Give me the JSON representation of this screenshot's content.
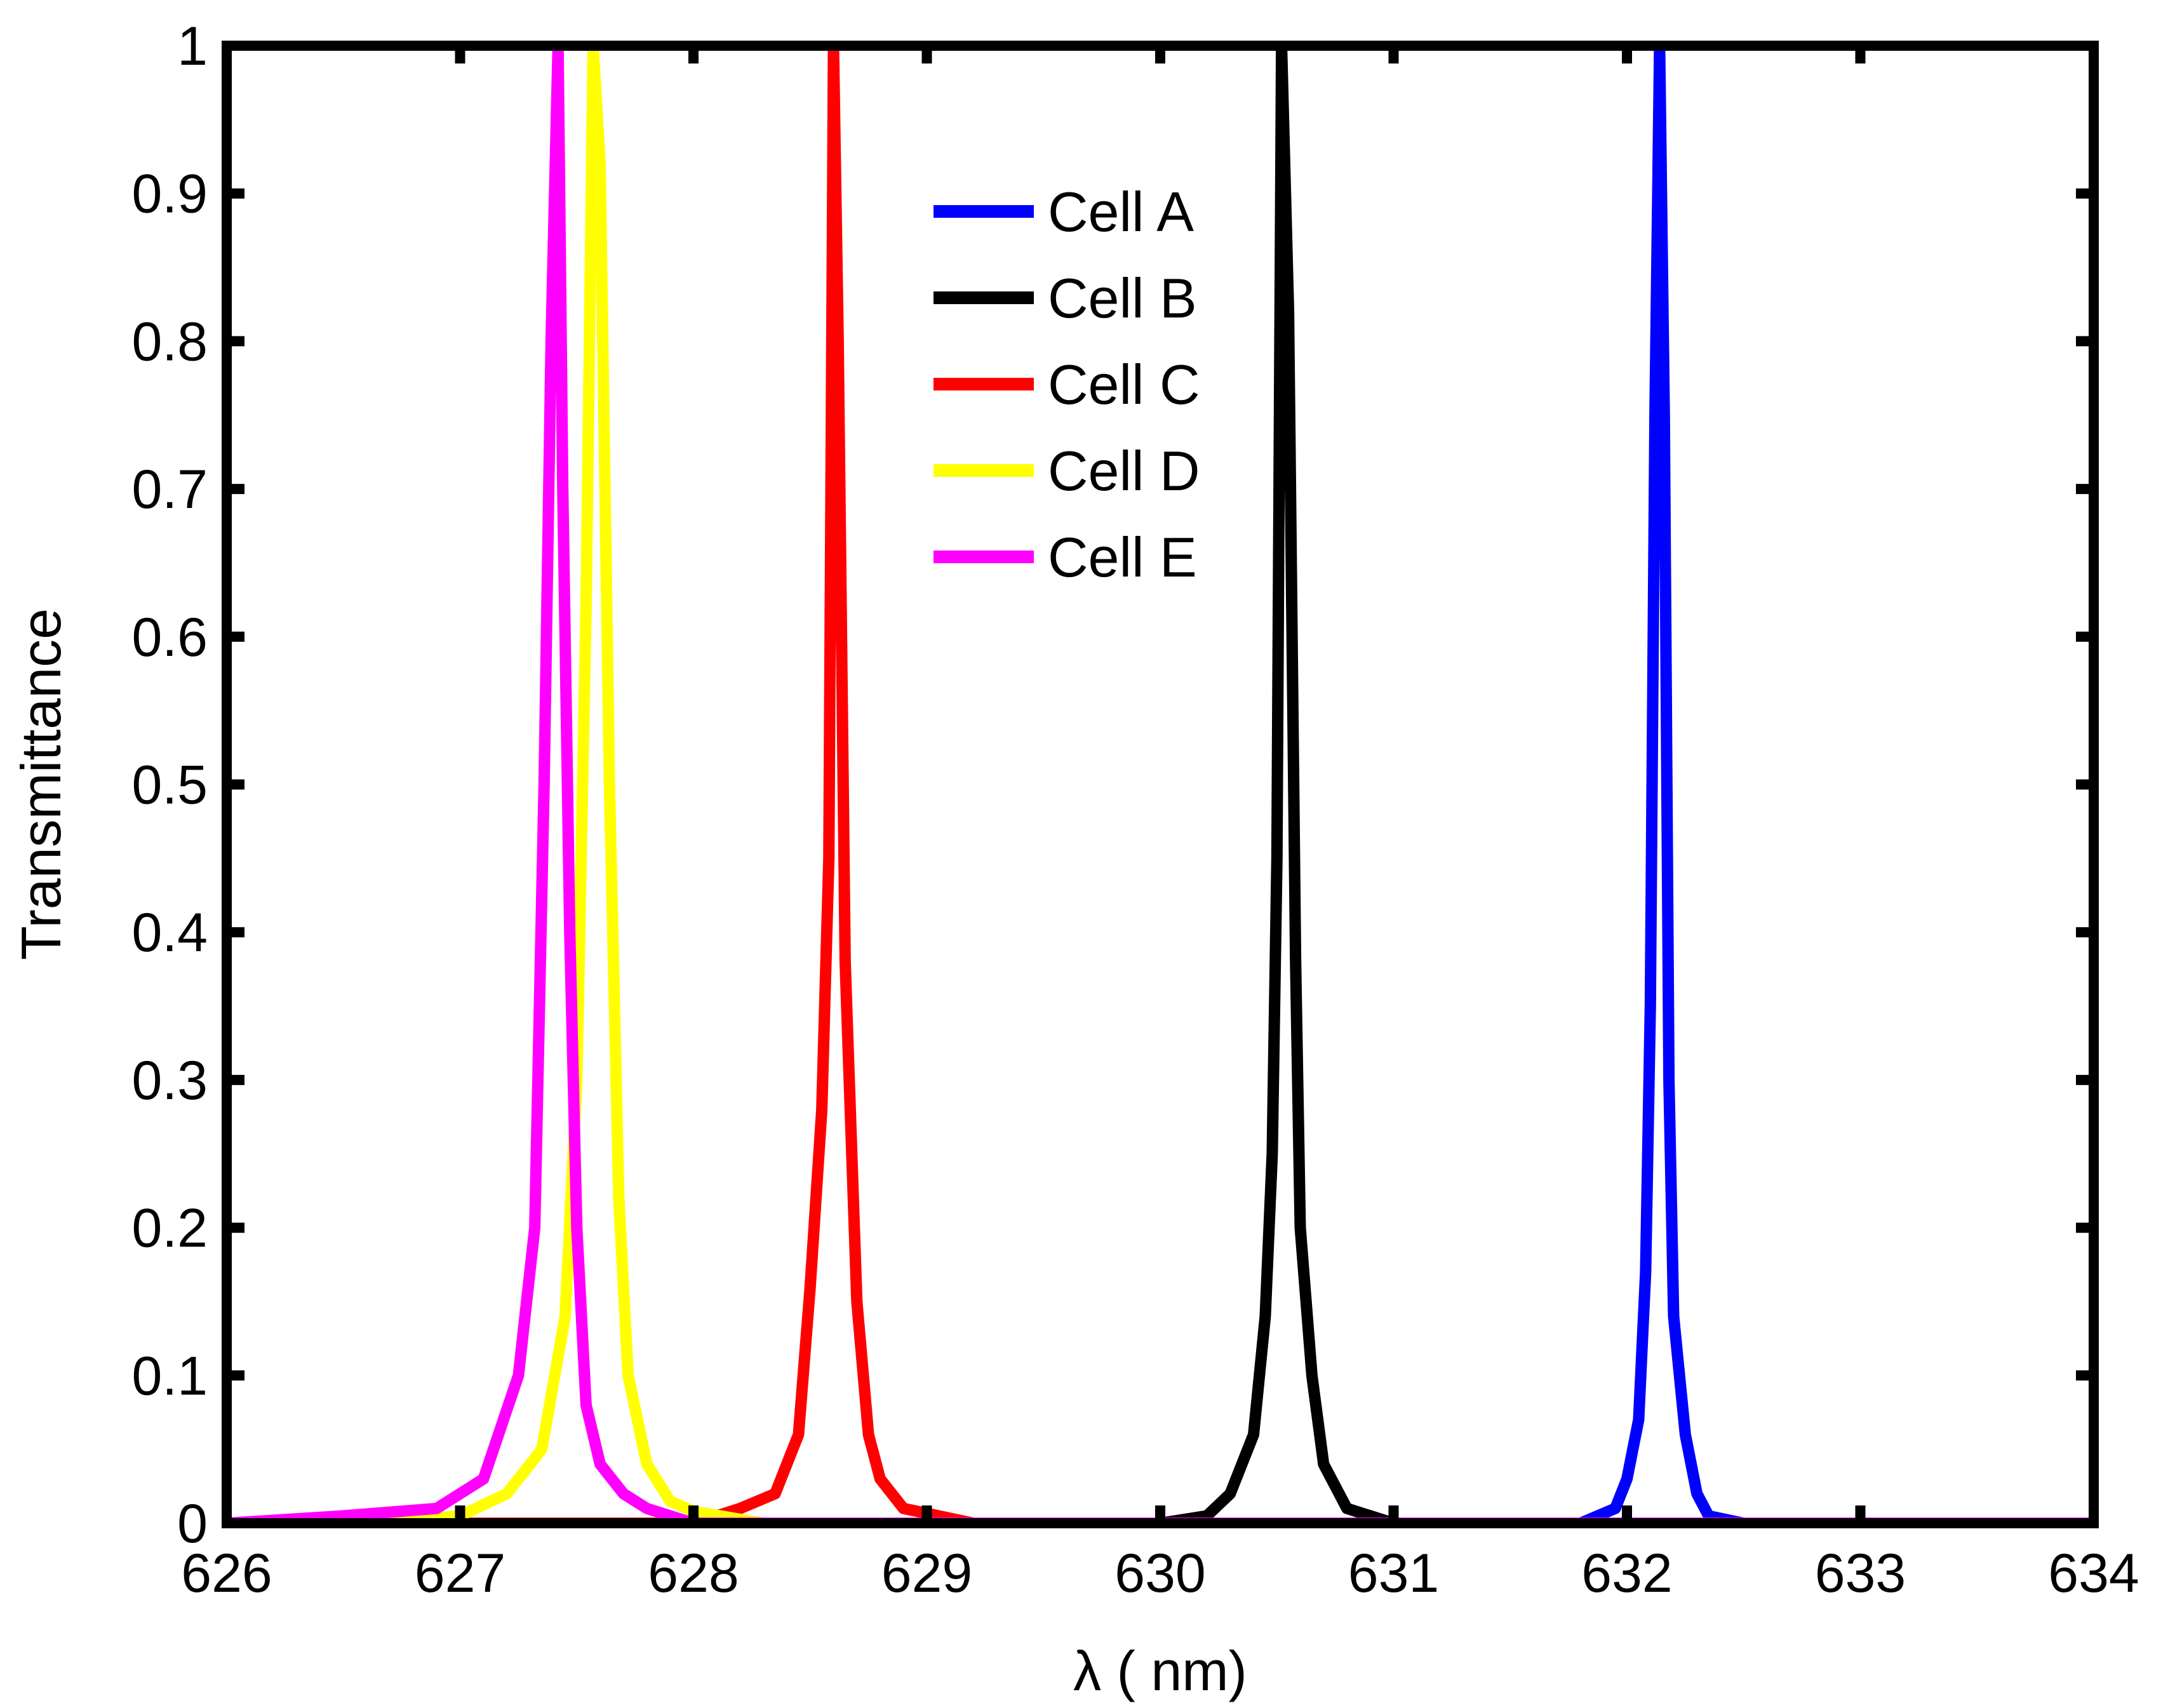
{
  "chart_data": {
    "type": "line",
    "title": "",
    "xlabel": "λ ( nm)",
    "ylabel": "Transmittance",
    "xlim": [
      626,
      634
    ],
    "ylim": [
      0,
      1
    ],
    "xticks": [
      626,
      627,
      628,
      629,
      630,
      631,
      632,
      633,
      634
    ],
    "yticks": [
      0,
      0.1,
      0.2,
      0.3,
      0.4,
      0.5,
      0.6,
      0.7,
      0.8,
      0.9,
      1
    ],
    "xtick_labels": [
      "626",
      "627",
      "628",
      "629",
      "630",
      "631",
      "632",
      "633",
      "634"
    ],
    "ytick_labels": [
      "0",
      "0.1",
      "0.2",
      "0.3",
      "0.4",
      "0.5",
      "0.6",
      "0.7",
      "0.8",
      "0.9",
      "1"
    ],
    "grid": false,
    "legend_position": "top-center",
    "series": [
      {
        "name": "Cell A",
        "color": "#0000ff",
        "x": [
          631.8,
          631.95,
          632.0,
          632.05,
          632.08,
          632.1,
          632.12,
          632.14,
          632.16,
          632.18,
          632.2,
          632.25,
          632.3,
          632.35,
          632.5
        ],
        "y": [
          0.0,
          0.01,
          0.03,
          0.07,
          0.17,
          0.35,
          0.75,
          1.0,
          0.75,
          0.3,
          0.14,
          0.06,
          0.02,
          0.005,
          0.0
        ]
      },
      {
        "name": "Cell B",
        "color": "#000000",
        "x": [
          630.0,
          630.2,
          630.3,
          630.4,
          630.45,
          630.48,
          630.5,
          630.52,
          630.55,
          630.58,
          630.6,
          630.65,
          630.7,
          630.8,
          631.0
        ],
        "y": [
          0.0,
          0.005,
          0.02,
          0.06,
          0.14,
          0.25,
          0.45,
          1.0,
          0.82,
          0.38,
          0.2,
          0.1,
          0.04,
          0.01,
          0.0
        ]
      },
      {
        "name": "Cell C",
        "color": "#ff0000",
        "x": [
          627.0,
          628.0,
          628.2,
          628.35,
          628.45,
          628.5,
          628.55,
          628.58,
          628.6,
          628.62,
          628.65,
          628.7,
          628.75,
          628.8,
          628.9,
          629.2
        ],
        "y": [
          0.0,
          0.0,
          0.01,
          0.02,
          0.06,
          0.16,
          0.28,
          0.45,
          1.0,
          0.8,
          0.38,
          0.15,
          0.06,
          0.03,
          0.01,
          0.0
        ]
      },
      {
        "name": "Cell D",
        "color": "#ffff00",
        "x": [
          626.6,
          627.0,
          627.2,
          627.35,
          627.45,
          627.5,
          627.54,
          627.57,
          627.6,
          627.64,
          627.68,
          627.72,
          627.8,
          627.9,
          628.0,
          628.3
        ],
        "y": [
          0.0,
          0.005,
          0.02,
          0.05,
          0.14,
          0.3,
          0.62,
          1.0,
          0.92,
          0.5,
          0.22,
          0.1,
          0.04,
          0.015,
          0.008,
          0.0
        ]
      },
      {
        "name": "Cell E",
        "color": "#ff00ff",
        "x": [
          626.0,
          626.5,
          626.9,
          627.1,
          627.25,
          627.32,
          627.36,
          627.39,
          627.42,
          627.44,
          627.47,
          627.5,
          627.54,
          627.6,
          627.7,
          627.8,
          628.0,
          634.0
        ],
        "y": [
          0.0,
          0.005,
          0.01,
          0.03,
          0.1,
          0.2,
          0.5,
          0.8,
          1.0,
          0.7,
          0.4,
          0.2,
          0.08,
          0.04,
          0.02,
          0.01,
          0.0,
          0.0
        ]
      }
    ]
  }
}
